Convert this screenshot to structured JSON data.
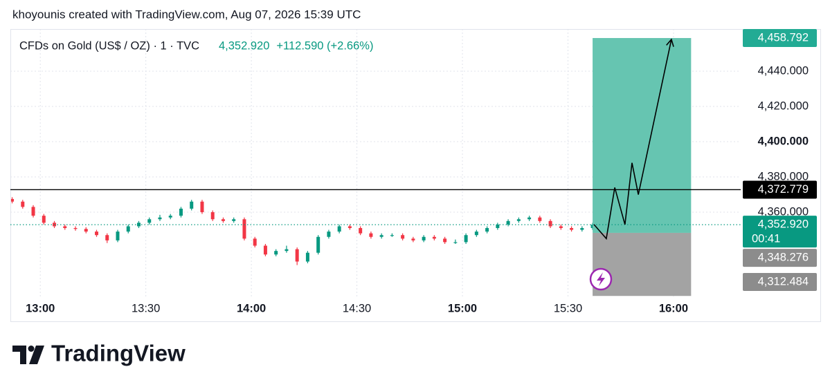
{
  "header": {
    "title": "khoyounis created with TradingView.com, Aug 07, 2026 15:39 UTC"
  },
  "footer": {
    "brand": "TradingView"
  },
  "chart_data": {
    "type": "candlestick",
    "title": "CFDs on Gold (US$ / OZ) · 1 · TVC",
    "last_price": "4,352.920",
    "change": "+112.590 (+2.66%)",
    "countdown": "00:41",
    "up_color": "#089981",
    "down_color": "#f23645",
    "grid": true,
    "xlim": [
      771.5,
      979.1
    ],
    "ylim": [
      4311.8,
      4463.9
    ],
    "xticks": [
      {
        "value": 780,
        "label": "13:00"
      },
      {
        "value": 810,
        "label": "13:30"
      },
      {
        "value": 840,
        "label": "14:00"
      },
      {
        "value": 870,
        "label": "14:30"
      },
      {
        "value": 900,
        "label": "15:00"
      },
      {
        "value": 930,
        "label": "15:30"
      },
      {
        "value": 960,
        "label": "16:00"
      }
    ],
    "yticks": [
      {
        "value": 4360,
        "label": "4,360.000"
      },
      {
        "value": 4380,
        "label": "4,380.000"
      },
      {
        "value": 4400,
        "label": "4,400.000"
      },
      {
        "value": 4420,
        "label": "4,420.000"
      },
      {
        "value": 4440,
        "label": "4,440.000"
      }
    ],
    "candles": {
      "x": [
        772,
        775,
        778,
        781,
        784,
        787,
        790,
        793,
        796,
        799,
        802,
        805,
        808,
        811,
        814,
        817,
        820,
        823,
        826,
        829,
        832,
        835,
        838,
        841,
        844,
        847,
        850,
        853,
        856,
        859,
        862,
        865,
        868,
        871,
        874,
        877,
        880,
        883,
        886,
        889,
        892,
        895,
        898,
        901,
        904,
        907,
        910,
        913,
        916,
        919,
        922,
        925,
        928,
        931,
        934,
        937
      ],
      "open": [
        4367.5,
        4366,
        4363,
        4358,
        4354,
        4352,
        4351,
        4350.5,
        4349,
        4347,
        4344,
        4349,
        4352,
        4354,
        4356,
        4357,
        4358,
        4362,
        4366,
        4360,
        4356,
        4355,
        4356,
        4345,
        4341,
        4336,
        4338,
        4339,
        4332,
        4337,
        4346,
        4349,
        4352,
        4351,
        4348,
        4346,
        4347,
        4347,
        4345,
        4344,
        4346,
        4345,
        4343,
        4343,
        4347,
        4349,
        4351,
        4353,
        4355,
        4356,
        4357,
        4355,
        4352,
        4351,
        4350,
        4351
      ],
      "high": [
        4368.5,
        4367,
        4364,
        4359,
        4355,
        4353,
        4352,
        4351.5,
        4350,
        4348,
        4350,
        4353,
        4355,
        4357,
        4358.5,
        4359,
        4363,
        4367,
        4367,
        4361,
        4357,
        4357,
        4357,
        4346,
        4342,
        4339,
        4341,
        4340,
        4338,
        4347,
        4350,
        4353,
        4353,
        4352,
        4349,
        4348,
        4348,
        4348,
        4346,
        4347,
        4347,
        4346,
        4344.5,
        4348,
        4350,
        4352,
        4354,
        4356,
        4357,
        4358,
        4358,
        4356,
        4353,
        4352,
        4352,
        4354
      ],
      "low": [
        4365,
        4362,
        4357,
        4353,
        4351,
        4350,
        4349.5,
        4348,
        4346,
        4342.5,
        4343,
        4348,
        4351,
        4353,
        4355,
        4356,
        4357,
        4361,
        4359,
        4355,
        4354,
        4354,
        4344,
        4340,
        4335,
        4335,
        4337,
        4330,
        4331,
        4336,
        4345,
        4348,
        4350,
        4347,
        4345,
        4345,
        4346,
        4344,
        4343,
        4343,
        4344,
        4342,
        4342,
        4342,
        4346,
        4348,
        4350,
        4352,
        4354,
        4355,
        4354,
        4351,
        4350,
        4349,
        4349,
        4350
      ],
      "close": [
        4366,
        4363,
        4358,
        4354,
        4352,
        4351,
        4350.5,
        4349,
        4347,
        4344,
        4349,
        4352,
        4354,
        4356,
        4357,
        4358,
        4362,
        4366,
        4360,
        4356,
        4355,
        4356,
        4345,
        4341,
        4336,
        4338,
        4339,
        4332,
        4337,
        4346,
        4349,
        4352,
        4351,
        4348,
        4346,
        4347,
        4347,
        4345,
        4344,
        4346,
        4345,
        4343,
        4343,
        4347,
        4349,
        4351,
        4353,
        4355,
        4356,
        4357,
        4355,
        4352,
        4351,
        4350,
        4351,
        4352.92
      ]
    },
    "hline": 4372.779,
    "position": {
      "start": 937,
      "end": 965,
      "target": 4458.792,
      "entry": 4348.276,
      "stop": 4312.484,
      "profit_color": "#66c5b1",
      "loss_color": "#a3a3a3"
    },
    "projection": {
      "x": [
        937.4,
        940.9,
        943.3,
        946.2,
        948.2,
        950,
        959.4
      ],
      "values": [
        4353,
        4345,
        4374,
        4353,
        4388,
        4370,
        4458
      ]
    },
    "price_labels": [
      {
        "value": 4458.792,
        "label": "4,458.792",
        "color": "#22ab94"
      },
      {
        "value": 4372.779,
        "label": "4,372.779",
        "color": "#000000"
      },
      {
        "value": 4352.92,
        "label": "4,352.920",
        "color": "#089981"
      },
      {
        "value": 4348.276,
        "label": "4,348.276",
        "color": "#8c8c8c"
      },
      {
        "value": 4312.484,
        "label": "4,312.484",
        "color": "#8c8c8c"
      }
    ]
  }
}
